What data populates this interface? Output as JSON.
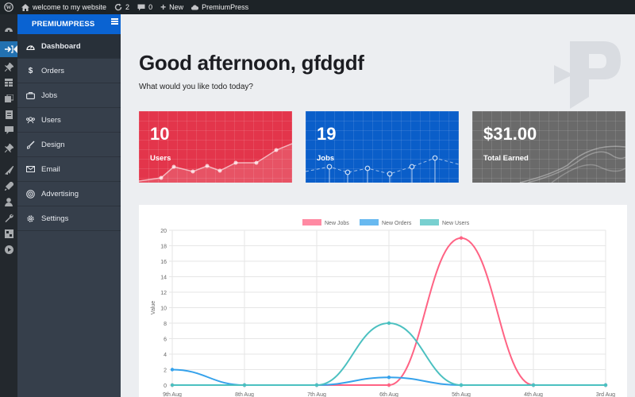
{
  "adminbar": {
    "site_name": "welcome to my website",
    "updates_count": "2",
    "comments_count": "0",
    "new_label": "New",
    "plugin_label": "PremiumPress"
  },
  "sidebar": {
    "logo": "PREMIUMPRESS",
    "items": [
      {
        "label": "Dashboard",
        "icon": "dashboard-icon"
      },
      {
        "label": "Orders",
        "icon": "dollar-icon"
      },
      {
        "label": "Jobs",
        "icon": "briefcase-icon"
      },
      {
        "label": "Users",
        "icon": "users-icon"
      },
      {
        "label": "Design",
        "icon": "brush-icon"
      },
      {
        "label": "Email",
        "icon": "envelope-icon"
      },
      {
        "label": "Advertising",
        "icon": "target-icon"
      },
      {
        "label": "Settings",
        "icon": "gear-icon"
      }
    ]
  },
  "main": {
    "greeting": "Good afternoon, gfdgdf",
    "subtext": "What would you like todo today?"
  },
  "cards": [
    {
      "value": "10",
      "label": "Users",
      "color": "#e3354b"
    },
    {
      "value": "19",
      "label": "Jobs",
      "color": "#0a5ec9"
    },
    {
      "value": "$31.00",
      "label": "Total Earned",
      "color": "#6a6a6a"
    }
  ],
  "chart_data": {
    "type": "line",
    "categories": [
      "9th Aug",
      "8th Aug",
      "7th Aug",
      "6th Aug",
      "5th Aug",
      "4th Aug",
      "3rd Aug"
    ],
    "series": [
      {
        "name": "New Jobs",
        "color": "#ff6384",
        "values": [
          0,
          0,
          0,
          0,
          19,
          0,
          0
        ]
      },
      {
        "name": "New Orders",
        "color": "#36a2eb",
        "values": [
          2,
          0,
          0,
          1,
          0,
          0,
          0
        ]
      },
      {
        "name": "New Users",
        "color": "#4bc0c0",
        "values": [
          0,
          0,
          0,
          8,
          0,
          0,
          0
        ]
      }
    ],
    "ylabel": "Value",
    "ylim": [
      0,
      20
    ],
    "yticks": [
      0,
      2,
      4,
      6,
      8,
      10,
      12,
      14,
      16,
      18,
      20
    ],
    "grid": true,
    "legend_position": "top"
  }
}
